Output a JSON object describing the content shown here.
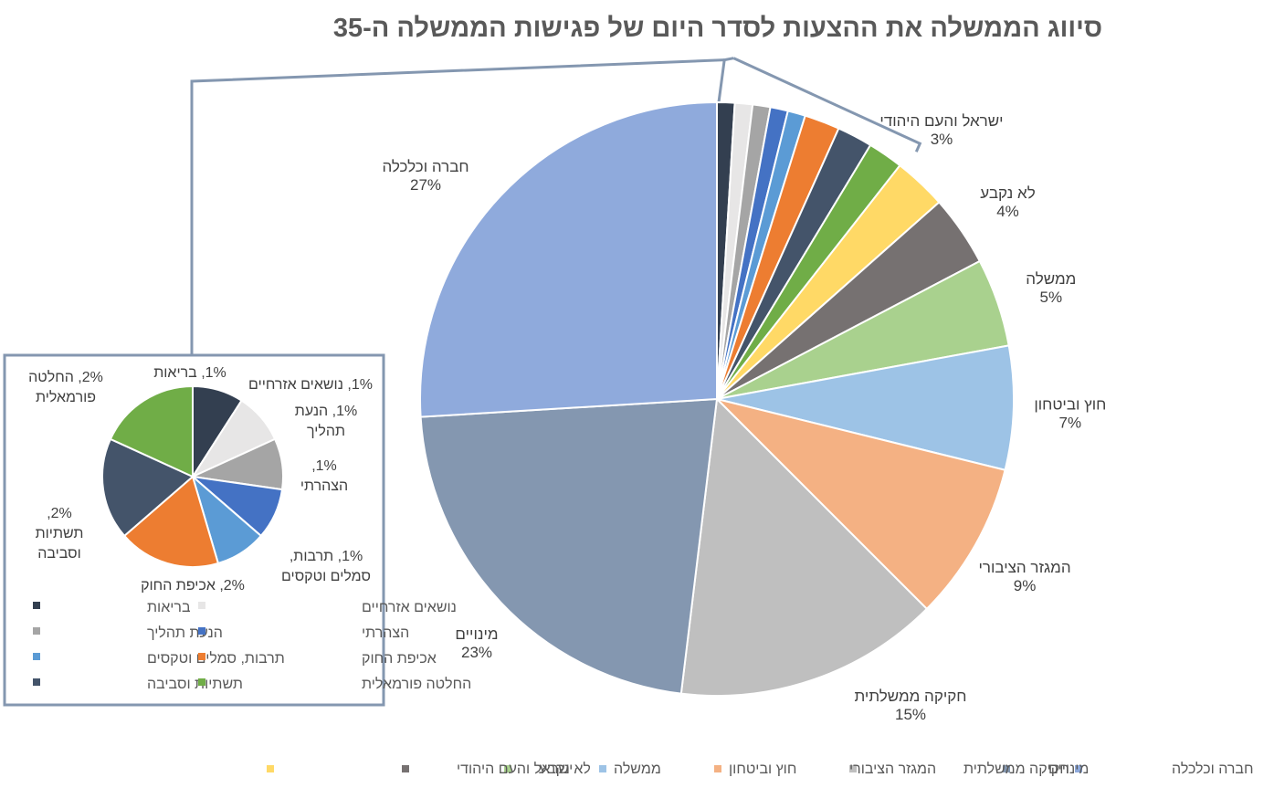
{
  "chart_data": [
    {
      "type": "pie",
      "title": "סיווג הממשלה את ההצעות לסדר היום של פגישות הממשלה ה-35",
      "slices": [
        {
          "name": "ישראל והעם היהודי",
          "value": 3,
          "label": "3%",
          "color": "#FFD966"
        },
        {
          "name": "לא נקבע",
          "value": 4,
          "label": "4%",
          "color": "#767171"
        },
        {
          "name": "ממשלה",
          "value": 5,
          "label": "5%",
          "color": "#A9D18E"
        },
        {
          "name": "חוץ וביטחון",
          "value": 7,
          "label": "7%",
          "color": "#9DC3E6"
        },
        {
          "name": "המגזר הציבורי",
          "value": 9,
          "label": "9%",
          "color": "#F4B183"
        },
        {
          "name": "חקיקה ממשלתית",
          "value": 15,
          "label": "15%",
          "color": "#BFBFBF"
        },
        {
          "name": "מינויים",
          "value": 23,
          "label": "23%",
          "color": "#8497B0"
        },
        {
          "name": "חברה וכלכלה",
          "value": 27,
          "label": "27%",
          "color": "#8FAADC"
        }
      ],
      "legend_position": "bottom"
    },
    {
      "type": "pie",
      "slices": [
        {
          "name": "בריאות",
          "value": 1,
          "label": "1%, בריאות",
          "color": "#333F50"
        },
        {
          "name": "נושאים אזרחיים",
          "value": 1,
          "label": "1%, נושאים אזרחיים",
          "color": "#E7E6E6"
        },
        {
          "name": "הנעת תהליך",
          "value": 1,
          "label": "1%, הנעת תהליך",
          "color": "#A5A5A5"
        },
        {
          "name": "הצהרתי",
          "value": 1,
          "label": "1%, הצהרתי",
          "color": "#4472C4"
        },
        {
          "name": "תרבות, סמלים וטקסים",
          "value": 1,
          "label": "1%, תרבות, סמלים וטקסים",
          "color": "#5B9BD5"
        },
        {
          "name": "אכיפת החוק",
          "value": 2,
          "label": "2%, אכיפת החוק",
          "color": "#ED7D31"
        },
        {
          "name": "תשתיות וסביבה",
          "value": 2,
          "label": "2%, תשתיות וסביבה",
          "color": "#44546A"
        },
        {
          "name": "החלטה פורמאלית",
          "value": 2,
          "label": "2%, החלטה פורמאלית",
          "color": "#70AD47"
        }
      ],
      "legend_position": "bottom"
    }
  ]
}
